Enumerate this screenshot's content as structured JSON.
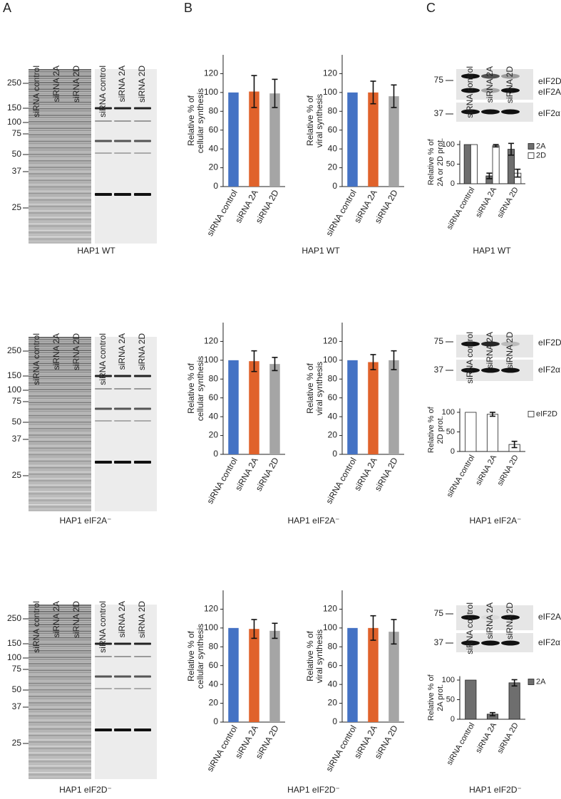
{
  "panel_labels": [
    "A",
    "B",
    "C"
  ],
  "rows": [
    {
      "gel": {
        "lanes": [
          "siRNA control",
          "siRNA 2A",
          "siRNA 2D",
          "siRNA control",
          "siRNA 2A",
          "siRNA 2D"
        ],
        "markers": [
          250,
          150,
          100,
          75,
          50,
          37,
          25
        ]
      },
      "blot": {
        "lanes": [
          "siRNA control",
          "siRNA 2A",
          "siRNA 2D"
        ],
        "markers": [
          75,
          37
        ],
        "bands": [
          "eIF2D",
          "eIF2A",
          "eIF2α"
        ]
      },
      "captions": [
        "HAP1 WT",
        "HAP1 WT",
        "HAP1 WT"
      ]
    },
    {
      "gel": {
        "lanes": [
          "siRNA control",
          "siRNA 2A",
          "siRNA 2D",
          "siRNA control",
          "siRNA 2A",
          "siRNA 2D"
        ],
        "markers": [
          250,
          150,
          100,
          75,
          50,
          37,
          25
        ]
      },
      "blot": {
        "lanes": [
          "siRNA control",
          "siRNA 2A",
          "siRNA 2D"
        ],
        "markers": [
          75,
          37
        ],
        "bands": [
          "eIF2D",
          "eIF2α"
        ]
      },
      "captions": [
        "HAP1 eIF2A⁻",
        "HAP1 eIF2A⁻",
        "HAP1 eIF2A⁻"
      ]
    },
    {
      "gel": {
        "lanes": [
          "siRNA control",
          "siRNA 2A",
          "siRNA 2D",
          "siRNA control",
          "siRNA 2A",
          "siRNA 2D"
        ],
        "markers": [
          250,
          150,
          100,
          75,
          50,
          37,
          25
        ]
      },
      "blot": {
        "lanes": [
          "siRNA control",
          "siRNA 2A",
          "siRNA 2D"
        ],
        "markers": [
          75,
          37
        ],
        "bands": [
          "eIF2A",
          "eIF2α"
        ]
      },
      "captions": [
        "HAP1 eIF2D⁻",
        "HAP1 eIF2D⁻",
        "HAP1 eIF2D⁻"
      ]
    }
  ],
  "chart_data": [
    {
      "type": "bar",
      "ylabel": [
        "Relative % of",
        "cellular synthesis"
      ],
      "categories": [
        "siRNA control",
        "siRNA 2A",
        "siRNA 2D"
      ],
      "values": [
        100,
        101,
        99
      ],
      "errors": [
        null,
        17,
        15
      ],
      "colors": [
        "#4472c4",
        "#e0622b",
        "#a5a5a5"
      ],
      "ylim": [
        0,
        140
      ],
      "yticks": [
        0,
        20,
        40,
        60,
        80,
        100,
        120
      ]
    },
    {
      "type": "bar",
      "ylabel": [
        "Relative % of",
        "viral synthesis"
      ],
      "categories": [
        "siRNA control",
        "siRNA 2A",
        "siRNA 2D"
      ],
      "values": [
        100,
        100,
        96
      ],
      "errors": [
        null,
        12,
        12
      ],
      "colors": [
        "#4472c4",
        "#e0622b",
        "#a5a5a5"
      ],
      "ylim": [
        0,
        140
      ],
      "yticks": [
        0,
        20,
        40,
        60,
        80,
        100,
        120
      ]
    },
    {
      "type": "bar",
      "ylabel": [
        "Relative % of",
        "2A or 2D prot."
      ],
      "categories": [
        "siRNA control",
        "siRNA 2A",
        "siRNA 2D"
      ],
      "series": [
        {
          "name": "2A",
          "color": "#6e6e6e",
          "values": [
            100,
            20,
            88
          ],
          "errors": [
            null,
            7,
            15
          ]
        },
        {
          "name": "2D",
          "color": "#ffffff",
          "values": [
            100,
            97,
            27
          ],
          "errors": [
            null,
            3,
            10
          ]
        }
      ],
      "ylim": [
        0,
        110
      ],
      "yticks": [
        0,
        50,
        100
      ],
      "legend": "right"
    },
    {
      "type": "bar",
      "ylabel": [
        "Relative % of",
        "cellular synthesis"
      ],
      "categories": [
        "siRNA control",
        "siRNA 2A",
        "siRNA 2D"
      ],
      "values": [
        100,
        99,
        96
      ],
      "errors": [
        null,
        11,
        7
      ],
      "colors": [
        "#4472c4",
        "#e0622b",
        "#a5a5a5"
      ],
      "ylim": [
        0,
        140
      ],
      "yticks": [
        0,
        20,
        40,
        60,
        80,
        100,
        120
      ]
    },
    {
      "type": "bar",
      "ylabel": [
        "Relative % of",
        "viral synthesis"
      ],
      "categories": [
        "siRNA control",
        "siRNA 2A",
        "siRNA 2D"
      ],
      "values": [
        100,
        98,
        100
      ],
      "errors": [
        null,
        8,
        10
      ],
      "colors": [
        "#4472c4",
        "#e0622b",
        "#a5a5a5"
      ],
      "ylim": [
        0,
        140
      ],
      "yticks": [
        0,
        20,
        40,
        60,
        80,
        100,
        120
      ]
    },
    {
      "type": "bar",
      "ylabel": [
        "Relative % of",
        "2D prot."
      ],
      "categories": [
        "siRNA control",
        "siRNA 2A",
        "siRNA 2D"
      ],
      "series": [
        {
          "name": "eIF2D",
          "color": "#ffffff",
          "values": [
            100,
            95,
            18
          ],
          "errors": [
            null,
            5,
            8
          ]
        }
      ],
      "ylim": [
        0,
        110
      ],
      "yticks": [
        0,
        50,
        100
      ],
      "legend": "right"
    },
    {
      "type": "bar",
      "ylabel": [
        "Relative % of",
        "cellular synthesis"
      ],
      "categories": [
        "siRNA control",
        "siRNA 2A",
        "siRNA 2D"
      ],
      "values": [
        100,
        99,
        97
      ],
      "errors": [
        null,
        10,
        8
      ],
      "colors": [
        "#4472c4",
        "#e0622b",
        "#a5a5a5"
      ],
      "ylim": [
        0,
        140
      ],
      "yticks": [
        0,
        20,
        40,
        60,
        80,
        100,
        120
      ]
    },
    {
      "type": "bar",
      "ylabel": [
        "Relative % of",
        "viral synthesis"
      ],
      "categories": [
        "siRNA control",
        "siRNA 2A",
        "siRNA 2D"
      ],
      "values": [
        100,
        100,
        96
      ],
      "errors": [
        null,
        13,
        13
      ],
      "colors": [
        "#4472c4",
        "#e0622b",
        "#a5a5a5"
      ],
      "ylim": [
        0,
        140
      ],
      "yticks": [
        0,
        20,
        40,
        60,
        80,
        100,
        120
      ]
    },
    {
      "type": "bar",
      "ylabel": [
        "Relative % of",
        "2A prot."
      ],
      "categories": [
        "siRNA control",
        "siRNA 2A",
        "siRNA 2D"
      ],
      "series": [
        {
          "name": "2A",
          "color": "#6e6e6e",
          "values": [
            100,
            13,
            93
          ],
          "errors": [
            null,
            4,
            8
          ]
        }
      ],
      "ylim": [
        0,
        110
      ],
      "yticks": [
        0,
        50,
        100
      ],
      "legend": "right"
    }
  ]
}
